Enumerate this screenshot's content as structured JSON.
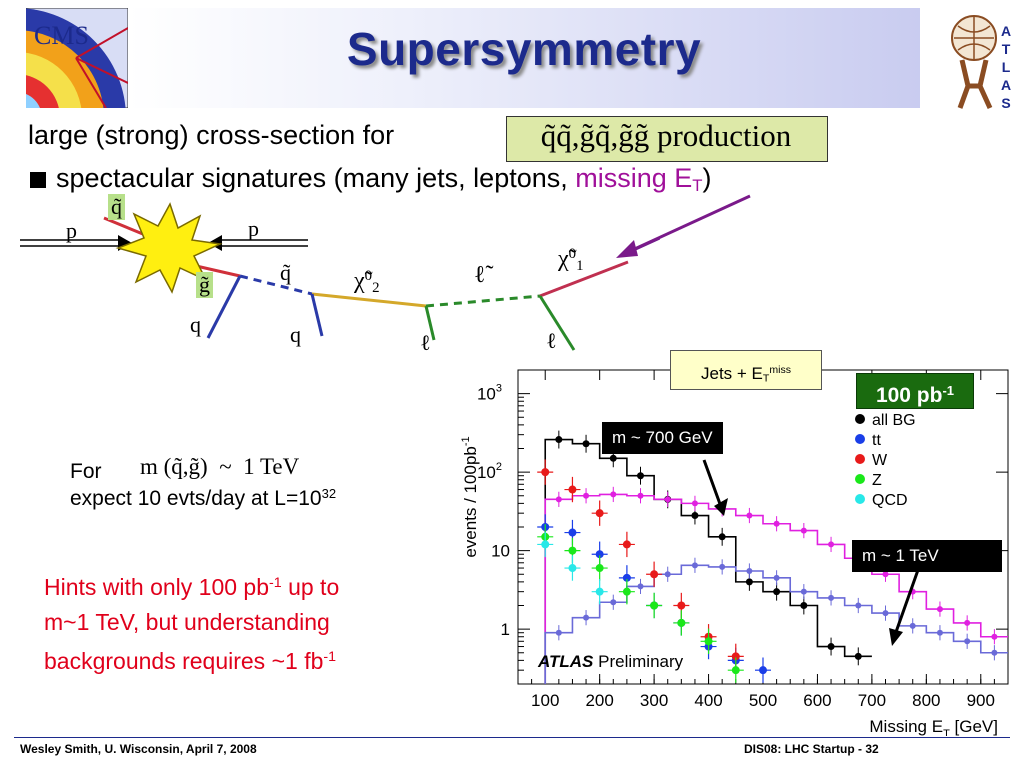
{
  "header": {
    "title": "Supersymmetry"
  },
  "bullets": {
    "line1_prefix": "large (strong) cross-section for",
    "formula": "q̃q̃,g̃q̃,g̃g̃ production",
    "line2_prefix": "spectacular signatures (many jets, leptons,",
    "line2_missing": "missing E",
    "line2_T": "T",
    "line2_close": ")"
  },
  "diagram": {
    "p_left": "p",
    "p_right": "p",
    "squark_top": "q̃",
    "gluino": "g̃",
    "q_left": "q",
    "squark_mid": "q̃",
    "q_mid": "q",
    "chi02": "χ̃",
    "chi02_sup": "0",
    "chi02_sub": "2",
    "slepton": "ℓ̃",
    "l1": "ℓ",
    "l2": "ℓ",
    "chi01": "χ̃",
    "chi01_sup": "0",
    "chi01_sub": "1"
  },
  "expectation": {
    "for_label": "For",
    "mass_formula": "m (q̃,g̃)  ~  1 TeV",
    "expect_text": "expect 10 evts/day at L=10",
    "expect_exp": "32"
  },
  "hints": {
    "line1": "Hints with only 100 pb",
    "line1_exp": "-1",
    "line1_tail": " up to",
    "line2": "m~1 TeV, but understanding",
    "line3": "backgrounds requires ~1 fb",
    "line3_exp": "-1"
  },
  "plot_labels": {
    "jets_box": "Jets + E",
    "jets_T": "T",
    "jets_sup": "miss",
    "badge": "100 pb",
    "badge_exp": "-1",
    "m700": "m ~ 700 GeV",
    "m1tev": "m ~ 1 TeV",
    "atlas": "ATLAS",
    "preliminary": "Preliminary"
  },
  "footer": {
    "left": "Wesley Smith, U. Wisconsin, April 7, 2008",
    "right": "DIS08: LHC Startup -  32"
  },
  "logos": {
    "left": "CMS",
    "right": "ATLAS"
  },
  "chart_data": {
    "type": "line",
    "xlabel": "Missing E",
    "xlabel_sub": "T",
    "xlabel_unit": "[GeV]",
    "ylabel": "events / 100pb",
    "ylabel_exp": "-1",
    "log_y": true,
    "xlim": [
      50,
      950
    ],
    "ylim": [
      0.2,
      2000
    ],
    "x_ticks": [
      "100",
      "200",
      "300",
      "400",
      "500",
      "600",
      "700",
      "800",
      "900"
    ],
    "y_ticks": [
      {
        "v": 1,
        "label": "1"
      },
      {
        "v": 10,
        "label": "10"
      },
      {
        "v": 100,
        "label": "10",
        "exp": "2"
      },
      {
        "v": 1000,
        "label": "10",
        "exp": "3"
      }
    ],
    "legend": [
      "all BG",
      "tt",
      "W",
      "Z",
      "QCD"
    ],
    "legend_placement": "top-right",
    "bin_edges": [
      50,
      100,
      150,
      200,
      250,
      300,
      350,
      400,
      450,
      500,
      550,
      600,
      650,
      700,
      750,
      800,
      850,
      900,
      950
    ],
    "series": [
      {
        "name": "all BG",
        "color": "#000000",
        "style": "step",
        "values": [
          null,
          260,
          230,
          150,
          90,
          45,
          28,
          15,
          4,
          3,
          2,
          0.6,
          0.45,
          null,
          null,
          null,
          null,
          null
        ]
      },
      {
        "name": "signal m~700 GeV",
        "color": "#e020e0",
        "style": "step",
        "values": [
          null,
          45,
          50,
          52,
          50,
          45,
          40,
          34,
          28,
          22,
          18,
          12,
          8,
          5,
          3,
          1.8,
          1.2,
          0.8
        ]
      },
      {
        "name": "signal m~1 TeV",
        "color": "#6a6ad8",
        "style": "step",
        "values": [
          null,
          0.9,
          1.4,
          2.2,
          3.5,
          5,
          6.5,
          6.2,
          5.5,
          4.5,
          3,
          2.5,
          2,
          1.6,
          1.1,
          0.9,
          0.7,
          0.5
        ]
      },
      {
        "name": "tt",
        "color": "#1a3ee8",
        "style": "points",
        "x": [
          100,
          150,
          200,
          250,
          300,
          350,
          400,
          450,
          500
        ],
        "values": [
          20,
          17,
          9,
          4.5,
          2,
          1.2,
          0.6,
          0.4,
          0.3
        ]
      },
      {
        "name": "W",
        "color": "#e81a1a",
        "style": "points",
        "x": [
          100,
          150,
          200,
          250,
          300,
          350,
          400,
          450
        ],
        "values": [
          100,
          60,
          30,
          12,
          5,
          2,
          0.8,
          0.45
        ]
      },
      {
        "name": "Z",
        "color": "#1ae81a",
        "style": "points",
        "x": [
          100,
          150,
          200,
          250,
          300,
          350,
          400,
          450
        ],
        "values": [
          15,
          10,
          6,
          3,
          2,
          1.2,
          0.7,
          0.3
        ]
      },
      {
        "name": "QCD",
        "color": "#28e8e8",
        "style": "points",
        "x": [
          100,
          150,
          200
        ],
        "values": [
          12,
          6,
          3
        ]
      }
    ]
  }
}
